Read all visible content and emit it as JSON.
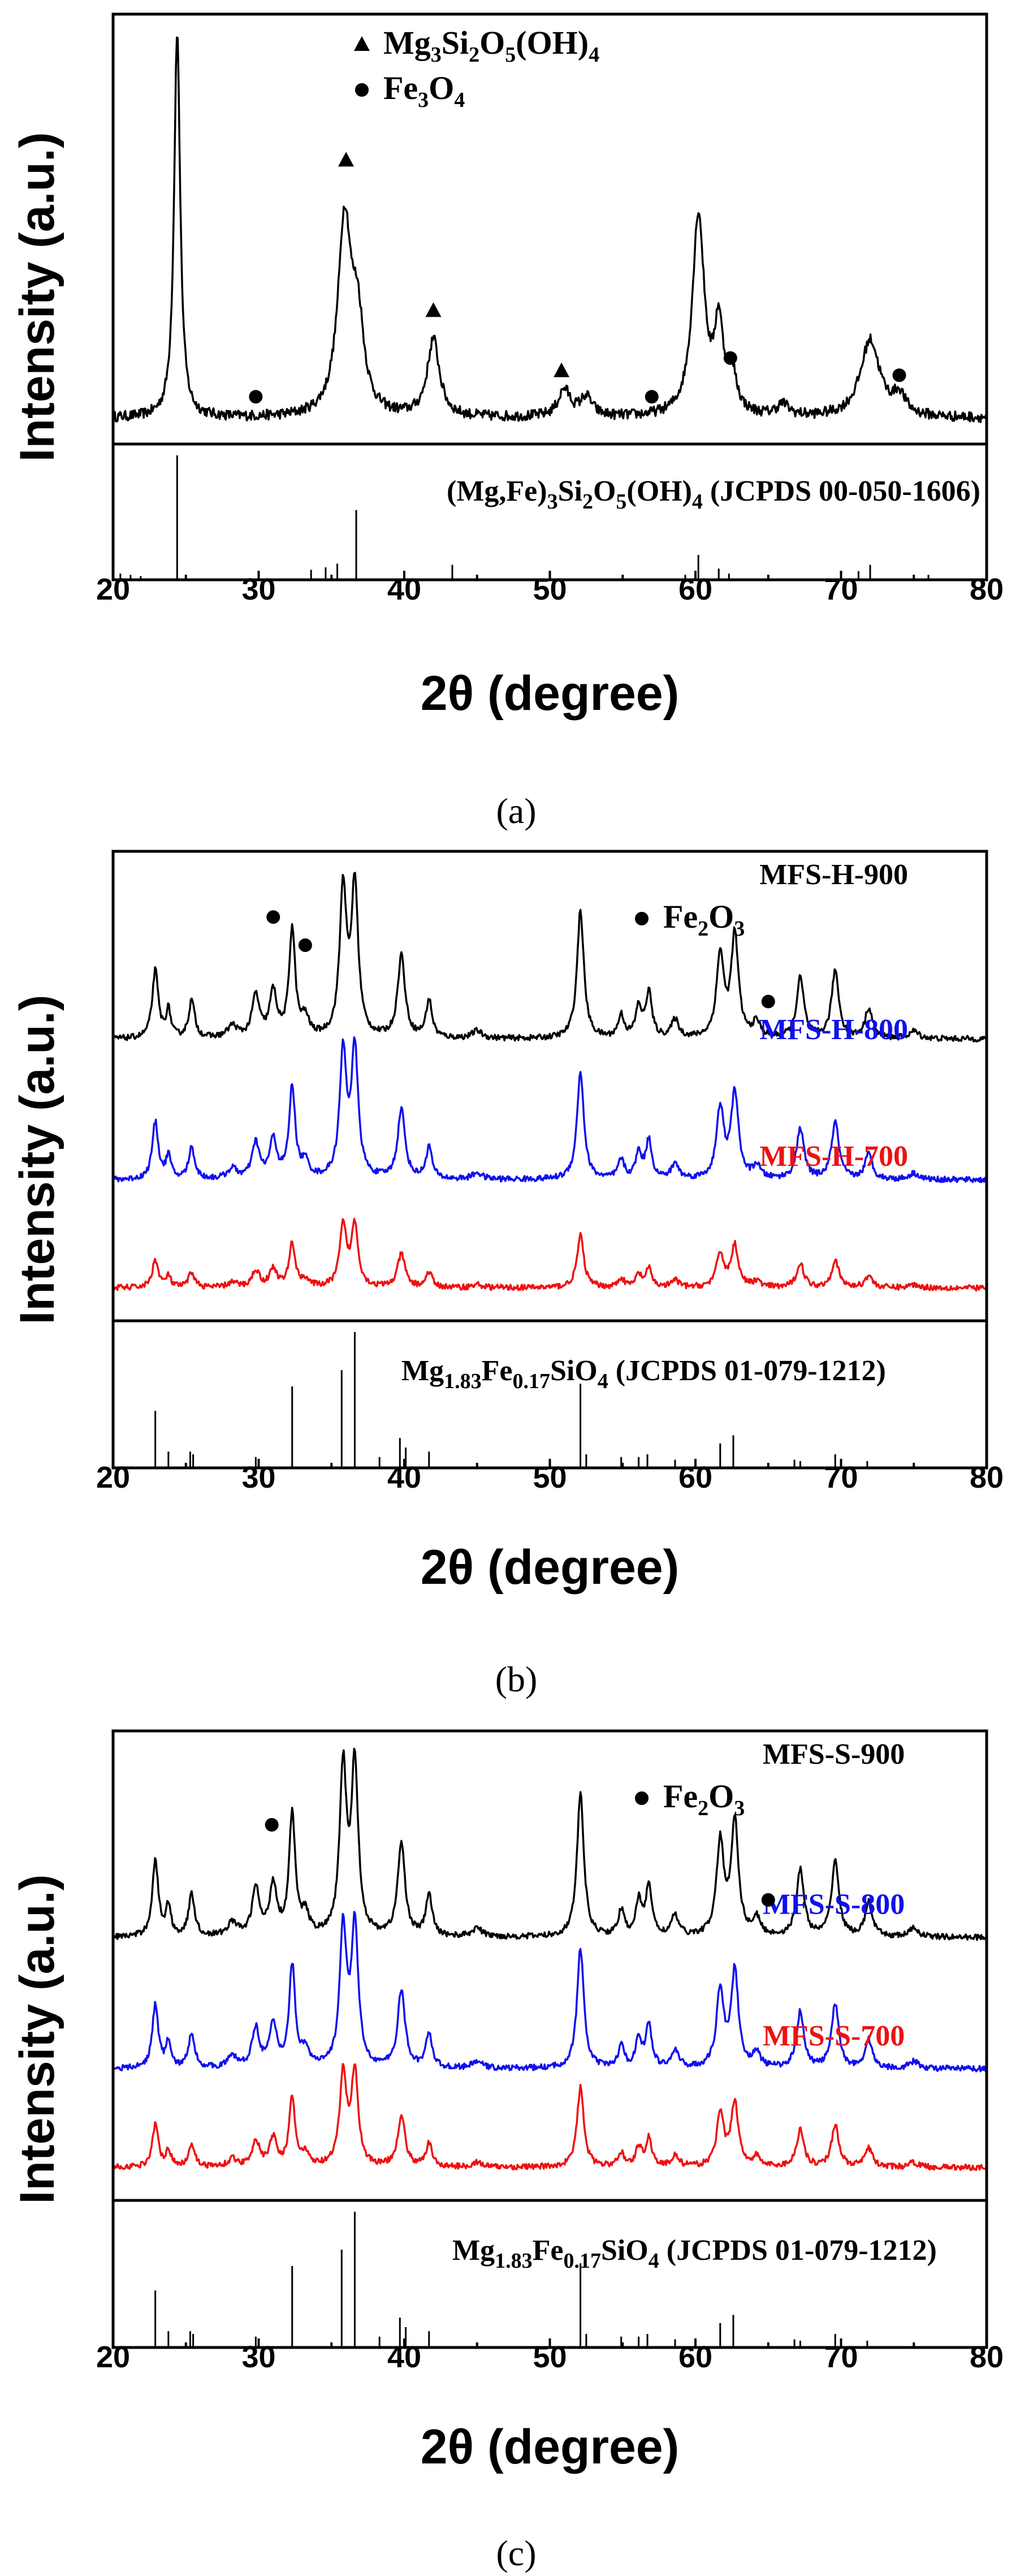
{
  "chart_data": [
    {
      "id": "a",
      "type": "line",
      "caption": "(a)",
      "xlabel": "2θ (degree)",
      "ylabel": "Intensity (a.u.)",
      "xlim": [
        20,
        80
      ],
      "xticks": [
        20,
        30,
        40,
        50,
        60,
        70,
        80
      ],
      "legend": [
        {
          "marker": "triangle",
          "label": "Mg3Si2O5(OH)4",
          "parts": [
            [
              "Mg",
              ""
            ],
            [
              "3",
              "sub"
            ],
            [
              "Si",
              ""
            ],
            [
              "2",
              "sub"
            ],
            [
              "O",
              ""
            ],
            [
              "5",
              "sub"
            ],
            [
              "(OH)",
              ""
            ],
            [
              "4",
              "sub"
            ]
          ]
        },
        {
          "marker": "circle",
          "label": "Fe3O4",
          "parts": [
            [
              "Fe",
              ""
            ],
            [
              "3",
              "sub"
            ],
            [
              "O",
              ""
            ],
            [
              "4",
              "sub"
            ]
          ]
        }
      ],
      "series": [
        {
          "name": "sample",
          "color": "#000000",
          "baseline": 0.06,
          "noise": 0.012,
          "peaks": [
            [
              24.4,
              1.0,
              0.25
            ],
            [
              35.9,
              0.5,
              0.55
            ],
            [
              36.8,
              0.22,
              0.5
            ],
            [
              42.0,
              0.2,
              0.5
            ],
            [
              51.0,
              0.07,
              0.5
            ],
            [
              52.5,
              0.05,
              0.5
            ],
            [
              60.2,
              0.52,
              0.5
            ],
            [
              61.6,
              0.22,
              0.35
            ],
            [
              62.5,
              0.1,
              0.4
            ],
            [
              66.0,
              0.03,
              0.5
            ],
            [
              72.0,
              0.2,
              0.8
            ],
            [
              74.0,
              0.05,
              0.5
            ]
          ]
        }
      ],
      "markers": [
        {
          "type": "triangle",
          "x": 36.0,
          "y": 0.66
        },
        {
          "type": "triangle",
          "x": 42.0,
          "y": 0.31
        },
        {
          "type": "triangle",
          "x": 50.8,
          "y": 0.17
        },
        {
          "type": "circle",
          "x": 29.8,
          "y": 0.11
        },
        {
          "type": "circle",
          "x": 57.0,
          "y": 0.11
        },
        {
          "type": "circle",
          "x": 62.4,
          "y": 0.2
        },
        {
          "type": "circle",
          "x": 74.0,
          "y": 0.16
        }
      ],
      "reference": {
        "parts": [
          [
            "(Mg,Fe)",
            ""
          ],
          [
            "3",
            "sub"
          ],
          [
            "Si",
            ""
          ],
          [
            "2",
            "sub"
          ],
          [
            "O",
            ""
          ],
          [
            "5",
            "sub"
          ],
          [
            "(OH)",
            ""
          ],
          [
            "4",
            "sub"
          ],
          [
            " (JCPDS 00-050-1606)",
            ""
          ]
        ],
        "label": "(Mg,Fe)3Si2O5(OH)4 (JCPDS 00-050-1606)",
        "lines": [
          [
            20.5,
            0.05
          ],
          [
            21.2,
            0.04
          ],
          [
            21.9,
            0.03
          ],
          [
            24.4,
            1.0
          ],
          [
            33.6,
            0.08
          ],
          [
            34.6,
            0.1
          ],
          [
            35.4,
            0.13
          ],
          [
            36.7,
            0.56
          ],
          [
            43.3,
            0.12
          ],
          [
            59.3,
            0.04
          ],
          [
            60.2,
            0.2
          ],
          [
            61.6,
            0.09
          ],
          [
            62.3,
            0.05
          ],
          [
            71.2,
            0.07
          ],
          [
            72.0,
            0.12
          ],
          [
            76.0,
            0.04
          ]
        ]
      }
    },
    {
      "id": "b",
      "type": "line",
      "caption": "(b)",
      "xlabel": "2θ (degree)",
      "ylabel": "Intensity (a.u.)",
      "xlim": [
        20,
        80
      ],
      "xticks": [
        20,
        30,
        40,
        50,
        60,
        70,
        80
      ],
      "legend": [
        {
          "marker": "circle",
          "label": "Fe2O3",
          "parts": [
            [
              "Fe",
              ""
            ],
            [
              "2",
              "sub"
            ],
            [
              "O",
              ""
            ],
            [
              "3",
              "sub"
            ]
          ]
        }
      ],
      "series": [
        {
          "name": "MFS-H-900",
          "color": "#000000",
          "baseline": 0.6,
          "scale": 0.32,
          "noise": 0.006,
          "labelX": 69.5,
          "labelY": 0.93
        },
        {
          "name": "MFS-H-800",
          "color": "#1010ee",
          "baseline": 0.3,
          "scale": 0.27,
          "noise": 0.006,
          "labelX": 69.5,
          "labelY": 0.6
        },
        {
          "name": "MFS-H-700",
          "color": "#ee1111",
          "baseline": 0.07,
          "scale": 0.13,
          "noise": 0.006,
          "labelX": 69.5,
          "labelY": 0.33
        }
      ],
      "peak_profile": [
        [
          22.9,
          0.45,
          0.25
        ],
        [
          23.8,
          0.18,
          0.2
        ],
        [
          25.4,
          0.25,
          0.25
        ],
        [
          28.2,
          0.08,
          0.4
        ],
        [
          29.8,
          0.28,
          0.3
        ],
        [
          31.0,
          0.3,
          0.3
        ],
        [
          32.3,
          0.72,
          0.25
        ],
        [
          33.2,
          0.12,
          0.3
        ],
        [
          35.8,
          0.98,
          0.28
        ],
        [
          36.6,
          1.0,
          0.28
        ],
        [
          39.8,
          0.55,
          0.3
        ],
        [
          41.7,
          0.25,
          0.25
        ],
        [
          45.0,
          0.05,
          0.4
        ],
        [
          52.1,
          0.85,
          0.28
        ],
        [
          54.9,
          0.15,
          0.25
        ],
        [
          56.1,
          0.2,
          0.25
        ],
        [
          56.8,
          0.3,
          0.25
        ],
        [
          58.6,
          0.12,
          0.3
        ],
        [
          61.7,
          0.55,
          0.3
        ],
        [
          62.7,
          0.68,
          0.3
        ],
        [
          64.2,
          0.1,
          0.3
        ],
        [
          67.2,
          0.4,
          0.3
        ],
        [
          69.6,
          0.45,
          0.3
        ],
        [
          71.9,
          0.2,
          0.3
        ],
        [
          75.0,
          0.05,
          0.4
        ]
      ],
      "markers": [
        {
          "type": "circle",
          "x": 31.0,
          "y": 0.86
        },
        {
          "type": "circle",
          "x": 33.2,
          "y": 0.8
        },
        {
          "type": "circle",
          "x": 65.0,
          "y": 0.68
        }
      ],
      "reference": {
        "parts": [
          [
            "Mg",
            ""
          ],
          [
            "1.83",
            "sub"
          ],
          [
            "Fe",
            ""
          ],
          [
            "0.17",
            "sub"
          ],
          [
            "SiO",
            ""
          ],
          [
            "4",
            "sub"
          ],
          [
            " (JCPDS 01-079-1212)",
            ""
          ]
        ],
        "label": "Mg1.83Fe0.17SiO4 (JCPDS 01-079-1212)",
        "lines": [
          [
            22.9,
            0.42
          ],
          [
            23.8,
            0.12
          ],
          [
            25.3,
            0.12
          ],
          [
            25.5,
            0.1
          ],
          [
            29.8,
            0.08
          ],
          [
            32.3,
            0.6
          ],
          [
            35.7,
            0.72
          ],
          [
            36.6,
            1.0
          ],
          [
            38.3,
            0.08
          ],
          [
            39.7,
            0.22
          ],
          [
            40.1,
            0.15
          ],
          [
            41.7,
            0.12
          ],
          [
            52.1,
            0.62
          ],
          [
            52.5,
            0.1
          ],
          [
            54.9,
            0.08
          ],
          [
            56.1,
            0.08
          ],
          [
            56.7,
            0.1
          ],
          [
            58.6,
            0.06
          ],
          [
            61.7,
            0.18
          ],
          [
            62.6,
            0.24
          ],
          [
            66.8,
            0.06
          ],
          [
            67.2,
            0.05
          ],
          [
            69.6,
            0.1
          ],
          [
            71.8,
            0.05
          ],
          [
            75.0,
            0.03
          ]
        ]
      }
    },
    {
      "id": "c",
      "type": "line",
      "caption": "(c)",
      "xlabel": "2θ (degree)",
      "ylabel": "Intensity (a.u.)",
      "xlim": [
        20,
        80
      ],
      "xticks": [
        20,
        30,
        40,
        50,
        60,
        70,
        80
      ],
      "legend": [
        {
          "marker": "circle",
          "label": "Fe2O3",
          "parts": [
            [
              "Fe",
              ""
            ],
            [
              "2",
              "sub"
            ],
            [
              "O",
              ""
            ],
            [
              "3",
              "sub"
            ]
          ]
        }
      ],
      "series": [
        {
          "name": "MFS-S-900",
          "color": "#000000",
          "baseline": 0.56,
          "scale": 0.36,
          "noise": 0.006,
          "labelX": 69.5,
          "labelY": 0.93
        },
        {
          "name": "MFS-S-800",
          "color": "#1010ee",
          "baseline": 0.28,
          "scale": 0.3,
          "noise": 0.006,
          "labelX": 69.5,
          "labelY": 0.61
        },
        {
          "name": "MFS-S-700",
          "color": "#ee1111",
          "baseline": 0.07,
          "scale": 0.2,
          "noise": 0.006,
          "labelX": 69.5,
          "labelY": 0.33
        }
      ],
      "peak_profile": [
        [
          22.9,
          0.45,
          0.25
        ],
        [
          23.8,
          0.18,
          0.2
        ],
        [
          25.4,
          0.25,
          0.25
        ],
        [
          28.2,
          0.08,
          0.4
        ],
        [
          29.8,
          0.28,
          0.3
        ],
        [
          31.0,
          0.3,
          0.3
        ],
        [
          32.3,
          0.72,
          0.25
        ],
        [
          33.2,
          0.12,
          0.3
        ],
        [
          35.8,
          0.98,
          0.28
        ],
        [
          36.6,
          1.0,
          0.28
        ],
        [
          39.8,
          0.55,
          0.3
        ],
        [
          41.7,
          0.25,
          0.25
        ],
        [
          45.0,
          0.05,
          0.4
        ],
        [
          52.1,
          0.85,
          0.28
        ],
        [
          54.9,
          0.15,
          0.25
        ],
        [
          56.1,
          0.2,
          0.25
        ],
        [
          56.8,
          0.3,
          0.25
        ],
        [
          58.6,
          0.12,
          0.3
        ],
        [
          61.7,
          0.55,
          0.3
        ],
        [
          62.7,
          0.68,
          0.3
        ],
        [
          64.2,
          0.1,
          0.3
        ],
        [
          67.2,
          0.4,
          0.3
        ],
        [
          69.6,
          0.45,
          0.3
        ],
        [
          71.9,
          0.2,
          0.3
        ],
        [
          75.0,
          0.05,
          0.4
        ]
      ],
      "markers": [
        {
          "type": "circle",
          "x": 30.9,
          "y": 0.8
        },
        {
          "type": "circle",
          "x": 65.0,
          "y": 0.64
        }
      ],
      "reference": {
        "parts": [
          [
            "Mg",
            ""
          ],
          [
            "1.83",
            "sub"
          ],
          [
            "Fe",
            ""
          ],
          [
            "0.17",
            "sub"
          ],
          [
            "SiO",
            ""
          ],
          [
            "4",
            "sub"
          ],
          [
            " (JCPDS 01-079-1212)",
            ""
          ]
        ],
        "label": "Mg1.83Fe0.17SiO4 (JCPDS 01-079-1212)",
        "lines": [
          [
            22.9,
            0.42
          ],
          [
            23.8,
            0.12
          ],
          [
            25.3,
            0.12
          ],
          [
            25.5,
            0.1
          ],
          [
            29.8,
            0.08
          ],
          [
            32.3,
            0.6
          ],
          [
            35.7,
            0.72
          ],
          [
            36.6,
            1.0
          ],
          [
            38.3,
            0.08
          ],
          [
            39.7,
            0.22
          ],
          [
            40.1,
            0.15
          ],
          [
            41.7,
            0.12
          ],
          [
            52.1,
            0.62
          ],
          [
            52.5,
            0.1
          ],
          [
            54.9,
            0.08
          ],
          [
            56.1,
            0.08
          ],
          [
            56.7,
            0.1
          ],
          [
            58.6,
            0.06
          ],
          [
            61.7,
            0.18
          ],
          [
            62.6,
            0.24
          ],
          [
            66.8,
            0.06
          ],
          [
            67.2,
            0.05
          ],
          [
            69.6,
            0.1
          ],
          [
            71.8,
            0.05
          ],
          [
            75.0,
            0.03
          ]
        ]
      }
    }
  ]
}
